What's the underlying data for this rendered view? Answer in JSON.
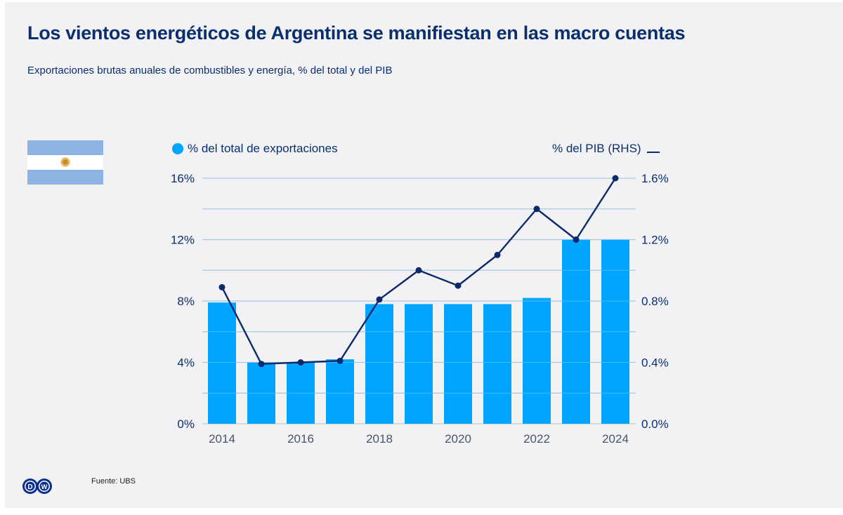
{
  "header": {
    "title": "Los vientos energéticos de Argentina se manifiestan en las macro cuentas",
    "subtitle": "Exportaciones brutas anuales de combustibles y energía, % del total y del PIB"
  },
  "flag": {
    "country": "Argentina",
    "icon": "argentina-flag-icon"
  },
  "legend": {
    "left_label": "% del total de exportaciones",
    "right_label": "% del PIB (RHS)"
  },
  "colors": {
    "bar": "#00a5ff",
    "line": "#0c2a6b",
    "text": "#0a2f6e",
    "grid": "#c9c9cc",
    "background": "#f2f1f3"
  },
  "chart_data": {
    "type": "bar",
    "title": "Los vientos energéticos de Argentina se manifiestan en las macro cuentas",
    "subtitle": "Exportaciones brutas anuales de combustibles y energía, % del total y del PIB",
    "xlabel": "",
    "ylabel": "",
    "categories": [
      "2014",
      "2015",
      "2016",
      "2017",
      "2018",
      "2019",
      "2020",
      "2021",
      "2022",
      "2023",
      "2024"
    ],
    "x_tick_labels": [
      "2014",
      "2016",
      "2018",
      "2020",
      "2022",
      "2024"
    ],
    "series": [
      {
        "name": "% del total de exportaciones",
        "type": "bar",
        "axis": "left",
        "values": [
          7.9,
          4.0,
          4.0,
          4.2,
          7.8,
          7.8,
          7.8,
          7.8,
          8.2,
          12.0,
          12.0
        ]
      },
      {
        "name": "% del PIB (RHS)",
        "type": "line",
        "axis": "right",
        "values": [
          0.89,
          0.39,
          0.4,
          0.41,
          0.81,
          1.0,
          0.9,
          1.1,
          1.4,
          1.2,
          1.6
        ]
      }
    ],
    "ylim": [
      0,
      16
    ],
    "ylim_right": [
      0,
      1.6
    ],
    "y_ticks": [
      "0%",
      "4%",
      "8%",
      "12%",
      "16%"
    ],
    "y_ticks_right": [
      "0.0%",
      "0.4%",
      "0.8%",
      "1.2%",
      "1.6%"
    ],
    "y_tick_values": [
      0,
      4,
      8,
      12,
      16
    ],
    "grid_values": [
      0,
      2,
      4,
      6,
      8,
      10,
      12,
      14,
      16
    ],
    "grid": true,
    "legend_position": "top"
  },
  "footer": {
    "source": "Fuente: UBS",
    "logo": "DW"
  }
}
